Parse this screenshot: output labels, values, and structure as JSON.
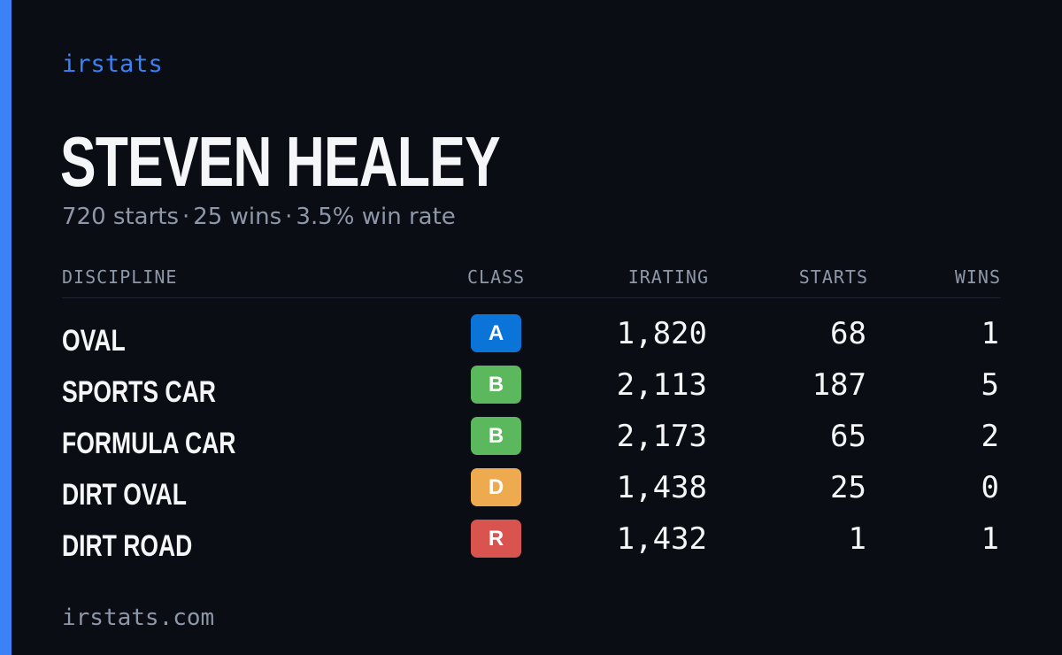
{
  "brand": "irstats",
  "driver": {
    "name": "STEVEN HEALEY",
    "starts_text": "720 starts",
    "wins_text": "25 wins",
    "winrate_text": "3.5% win rate",
    "separator": "·"
  },
  "table": {
    "headers": {
      "discipline": "DISCIPLINE",
      "class": "CLASS",
      "irating": "IRATING",
      "starts": "STARTS",
      "wins": "WINS"
    },
    "rows": [
      {
        "discipline": "OVAL",
        "class": "A",
        "class_color": "#0b74d9",
        "irating": "1,820",
        "starts": "68",
        "wins": "1"
      },
      {
        "discipline": "SPORTS CAR",
        "class": "B",
        "class_color": "#5cb85c",
        "irating": "2,113",
        "starts": "187",
        "wins": "5"
      },
      {
        "discipline": "FORMULA CAR",
        "class": "B",
        "class_color": "#5cb85c",
        "irating": "2,173",
        "starts": "65",
        "wins": "2"
      },
      {
        "discipline": "DIRT OVAL",
        "class": "D",
        "class_color": "#eeaa4e",
        "irating": "1,438",
        "starts": "25",
        "wins": "0"
      },
      {
        "discipline": "DIRT ROAD",
        "class": "R",
        "class_color": "#d9534f",
        "irating": "1,432",
        "starts": "1",
        "wins": "1"
      }
    ]
  },
  "footer": "irstats.com",
  "colors": {
    "accent": "#3b82f6",
    "background": "#0a0d14",
    "muted": "#8e97a8",
    "text": "#f5f6f8"
  }
}
